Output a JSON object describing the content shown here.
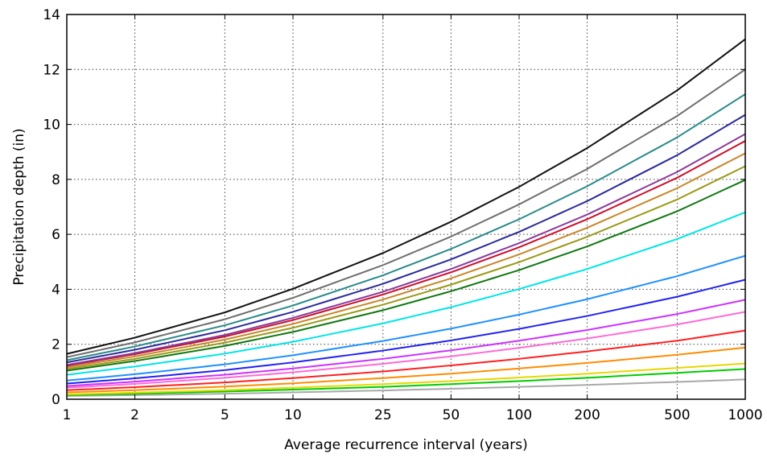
{
  "chart_data": {
    "type": "line",
    "title": "",
    "xlabel": "Average recurrence interval (years)",
    "ylabel": "Precipitation depth (in)",
    "xscale": "log",
    "xlim": [
      1,
      1000
    ],
    "ylim": [
      0,
      14
    ],
    "grid": true,
    "x": [
      1,
      2,
      5,
      10,
      25,
      50,
      100,
      200,
      500,
      1000
    ],
    "x_tick_labels": [
      "1",
      "2",
      "5",
      "10",
      "25",
      "50",
      "100",
      "200",
      "500",
      "1000"
    ],
    "y_ticks": [
      0,
      2,
      4,
      6,
      8,
      10,
      12,
      14
    ],
    "y_tick_labels": [
      "0",
      "2",
      "4",
      "6",
      "8",
      "10",
      "12",
      "14"
    ],
    "series": [
      {
        "color": "#a9a9a9",
        "values": [
          0.12,
          0.15,
          0.2,
          0.25,
          0.32,
          0.38,
          0.45,
          0.52,
          0.63,
          0.72
        ]
      },
      {
        "color": "#00cc00",
        "values": [
          0.15,
          0.2,
          0.28,
          0.35,
          0.45,
          0.55,
          0.66,
          0.78,
          0.96,
          1.1
        ]
      },
      {
        "color": "#e6d800",
        "values": [
          0.18,
          0.24,
          0.33,
          0.42,
          0.55,
          0.66,
          0.79,
          0.93,
          1.14,
          1.3
        ]
      },
      {
        "color": "#ff8c00",
        "values": [
          0.25,
          0.33,
          0.46,
          0.58,
          0.77,
          0.93,
          1.12,
          1.32,
          1.62,
          1.88
        ]
      },
      {
        "color": "#ff2020",
        "values": [
          0.33,
          0.44,
          0.61,
          0.77,
          1.01,
          1.23,
          1.47,
          1.74,
          2.13,
          2.5
        ]
      },
      {
        "color": "#ff6ad5",
        "values": [
          0.42,
          0.56,
          0.78,
          0.98,
          1.29,
          1.56,
          1.87,
          2.21,
          2.72,
          3.18
        ]
      },
      {
        "color": "#cc33ff",
        "values": [
          0.48,
          0.64,
          0.89,
          1.12,
          1.47,
          1.78,
          2.13,
          2.52,
          3.1,
          3.62
        ]
      },
      {
        "color": "#2222ee",
        "values": [
          0.57,
          0.76,
          1.06,
          1.34,
          1.77,
          2.14,
          2.56,
          3.03,
          3.73,
          4.35
        ]
      },
      {
        "color": "#1e90ff",
        "values": [
          0.68,
          0.91,
          1.27,
          1.6,
          2.12,
          2.57,
          3.08,
          3.64,
          4.48,
          5.22
        ]
      },
      {
        "color": "#00e5e5",
        "values": [
          0.89,
          1.19,
          1.66,
          2.09,
          2.76,
          3.35,
          4.01,
          4.74,
          5.83,
          6.8
        ]
      },
      {
        "color": "#117711",
        "values": [
          1.04,
          1.39,
          1.94,
          2.45,
          3.24,
          3.93,
          4.7,
          5.56,
          6.84,
          7.98
        ]
      },
      {
        "color": "#9a9a1a",
        "values": [
          1.1,
          1.47,
          2.06,
          2.6,
          3.44,
          4.17,
          4.99,
          5.91,
          7.27,
          8.48
        ]
      },
      {
        "color": "#c8862a",
        "values": [
          1.16,
          1.56,
          2.17,
          2.74,
          3.63,
          4.4,
          5.27,
          6.24,
          7.68,
          8.95
        ]
      },
      {
        "color": "#c8102e",
        "values": [
          1.22,
          1.64,
          2.28,
          2.88,
          3.81,
          4.62,
          5.53,
          6.55,
          8.06,
          9.4
        ]
      },
      {
        "color": "#8b3a9b",
        "values": [
          1.25,
          1.68,
          2.34,
          2.96,
          3.91,
          4.74,
          5.68,
          6.72,
          8.27,
          9.65
        ]
      },
      {
        "color": "#2b2b99",
        "values": [
          1.34,
          1.8,
          2.51,
          3.18,
          4.2,
          5.09,
          6.09,
          7.21,
          8.88,
          10.35
        ]
      },
      {
        "color": "#2a8a8a",
        "values": [
          1.42,
          1.92,
          2.69,
          3.41,
          4.51,
          5.47,
          6.55,
          7.75,
          9.53,
          11.1
        ]
      },
      {
        "color": "#6e6e6e",
        "values": [
          1.53,
          2.07,
          2.91,
          3.69,
          4.88,
          5.92,
          7.09,
          8.38,
          10.31,
          12.0
        ]
      },
      {
        "color": "#111111",
        "values": [
          1.65,
          2.24,
          3.16,
          4.02,
          5.32,
          6.46,
          7.73,
          9.14,
          11.24,
          13.1
        ]
      }
    ]
  }
}
